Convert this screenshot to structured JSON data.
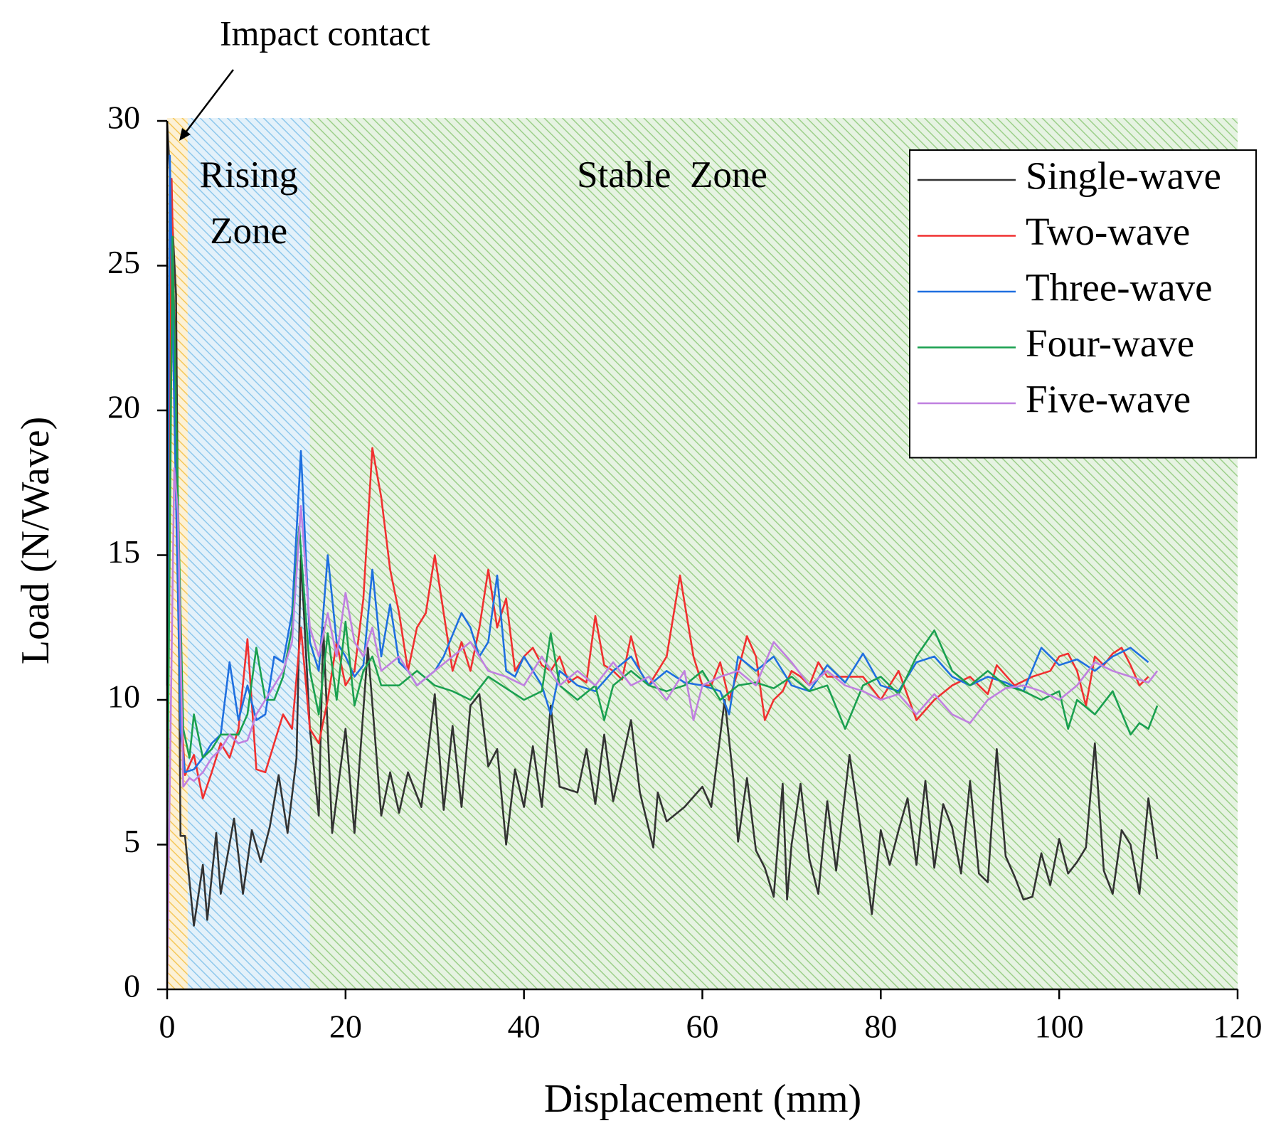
{
  "chart_data": {
    "type": "line",
    "x_label": "Displacement (mm)",
    "y_label": "Load (N/Wave)",
    "xlim": [
      0,
      120
    ],
    "xticks": [
      0,
      20,
      40,
      60,
      80,
      100,
      120
    ],
    "ylim": [
      0,
      30
    ],
    "yticks": [
      0,
      5,
      10,
      15,
      20,
      25,
      30
    ],
    "annotation": "Impact contact",
    "zones": [
      {
        "start": 0,
        "end": 2.3,
        "color": "#f5c85a"
      },
      {
        "start": 2.3,
        "end": 16,
        "color": "#8ec8ec",
        "label_lines": [
          "Rising",
          "Zone"
        ]
      },
      {
        "start": 16,
        "end": 120,
        "color": "#9ccf8a",
        "label_lines": [
          "Stable  Zone"
        ]
      }
    ],
    "legend": "upper right",
    "series": [
      {
        "name": "Single-wave",
        "color": "#333333",
        "x": [
          0,
          1,
          1.5,
          2,
          3,
          4,
          4.5,
          5.5,
          6,
          7.5,
          8.5,
          9.5,
          10.5,
          11.5,
          12.5,
          13.5,
          14.5,
          15,
          16,
          17,
          17.5,
          18.5,
          20,
          21,
          22.5,
          24,
          25,
          26,
          27,
          28.5,
          30,
          31,
          32,
          33,
          34,
          35,
          36,
          37,
          38,
          39,
          40,
          41,
          42,
          43,
          44,
          46,
          47,
          48,
          49,
          50,
          52,
          53,
          54.5,
          55,
          56,
          58,
          60,
          61,
          62.5,
          63.5,
          64,
          65,
          66,
          67,
          68,
          69,
          69.5,
          70,
          71,
          72,
          73,
          74,
          75,
          76.5,
          78,
          79,
          80,
          81,
          82,
          83,
          84,
          85,
          86,
          87,
          88,
          89,
          90,
          91,
          92,
          93,
          94,
          95,
          96,
          97,
          98,
          99,
          100,
          101,
          102,
          103,
          104,
          105,
          106,
          107,
          108,
          109,
          110,
          111
        ],
        "values": [
          30,
          24,
          5.3,
          5.3,
          2.2,
          4.3,
          2.4,
          5.4,
          3.3,
          5.9,
          3.3,
          5.5,
          4.4,
          5.6,
          7.4,
          5.4,
          8,
          15,
          9,
          6,
          12.5,
          5.4,
          9,
          5.4,
          11.8,
          6,
          7.5,
          6.1,
          7.5,
          6.3,
          10.2,
          6.2,
          9.1,
          6.3,
          9.8,
          10.2,
          7.7,
          8.3,
          5,
          7.6,
          6.3,
          8.4,
          6.3,
          9.8,
          7,
          6.8,
          8.3,
          6.4,
          8.8,
          6.5,
          9.3,
          6.8,
          4.9,
          6.8,
          5.8,
          6.3,
          7,
          6.3,
          10,
          7.2,
          5.1,
          7.3,
          4.8,
          4.2,
          3.2,
          7.1,
          3.1,
          5,
          7.1,
          4.5,
          3.3,
          6.5,
          4.1,
          8.1,
          5,
          2.6,
          5.5,
          4.3,
          5.5,
          6.6,
          4.3,
          7.2,
          4.2,
          6.4,
          5.6,
          4,
          7.2,
          4,
          3.7,
          8.3,
          4.6,
          3.9,
          3.1,
          3.2,
          4.7,
          3.6,
          5.2,
          4,
          4.4,
          4.9,
          8.5,
          4.1,
          3.3,
          5.5,
          5,
          3.3,
          6.6,
          4.5
        ]
      },
      {
        "name": "Two-wave",
        "color": "#f03030",
        "x": [
          0,
          0.5,
          1,
          1.5,
          2,
          3,
          4,
          5,
          6,
          7,
          8,
          9,
          10,
          11,
          12,
          13,
          14,
          15,
          16,
          17,
          18,
          19,
          20,
          21,
          22,
          23,
          24,
          25,
          26,
          27,
          28,
          29,
          30,
          31,
          32,
          33,
          34,
          35,
          36,
          37,
          38,
          39,
          40,
          41,
          42,
          43,
          44,
          45,
          46,
          47,
          48,
          49,
          50,
          51,
          52,
          53,
          54,
          56,
          57.5,
          59,
          60,
          61,
          62,
          63,
          64,
          65,
          66,
          67,
          68,
          69,
          70,
          71,
          72,
          73,
          74,
          76,
          78,
          80,
          82,
          84,
          86,
          88,
          90,
          92,
          93,
          95,
          97,
          99,
          100,
          101,
          102,
          103,
          104,
          105,
          106,
          107,
          108,
          109,
          110
        ],
        "values": [
          10.5,
          28,
          20,
          10,
          7.4,
          8.1,
          6.6,
          7.5,
          8.5,
          8,
          9,
          12.1,
          7.6,
          7.5,
          8.5,
          9.5,
          9,
          12.5,
          9,
          8.5,
          10,
          12,
          10.5,
          11,
          13.5,
          18.7,
          17,
          14.5,
          13,
          11,
          12.5,
          13,
          15,
          13,
          11,
          12,
          11,
          12.5,
          14.5,
          12.5,
          13.5,
          11,
          11.5,
          11.8,
          11.2,
          11,
          11.5,
          10.6,
          10.8,
          10.6,
          12.9,
          11.2,
          11,
          10.7,
          12.2,
          11,
          10.5,
          11.5,
          14.3,
          11.5,
          10.5,
          10.5,
          11.3,
          10,
          11,
          12.2,
          11.5,
          9.3,
          10,
          10.3,
          11,
          10.8,
          10.5,
          11.3,
          10.8,
          10.8,
          10.8,
          10,
          11,
          9.3,
          10,
          10.5,
          10.8,
          10.2,
          11.2,
          10.5,
          10.8,
          11,
          11.5,
          11.6,
          11,
          9.8,
          11.5,
          11.2,
          11.6,
          11.8,
          11.2,
          10.5,
          10.8
        ]
      },
      {
        "name": "Three-wave",
        "color": "#1f6fe0",
        "x": [
          0,
          0.3,
          0.8,
          1.5,
          2,
          3,
          4,
          5,
          6,
          7,
          8,
          9,
          10,
          11,
          12,
          13,
          14,
          15,
          16,
          17,
          18,
          19,
          20,
          21,
          22,
          23,
          24,
          25,
          26,
          27,
          28,
          30,
          31,
          33,
          34,
          35,
          36,
          37,
          38,
          39,
          40,
          42,
          43,
          44,
          46,
          48,
          50,
          52,
          54,
          56,
          58,
          60,
          62,
          63,
          64,
          66,
          68,
          70,
          72,
          74,
          76,
          78,
          80,
          82,
          84,
          86,
          88,
          90,
          92,
          94,
          96,
          98,
          100,
          102,
          104,
          106,
          108,
          110
        ],
        "values": [
          10.5,
          28.8,
          20,
          9,
          7.5,
          7.6,
          8,
          8.5,
          8.8,
          11.3,
          9.3,
          10.5,
          9.3,
          9.5,
          11.5,
          11.3,
          13,
          18.6,
          12,
          11,
          15,
          12,
          11.5,
          10.8,
          11.2,
          14.5,
          11.5,
          13.3,
          11.3,
          11,
          10.5,
          11,
          11.5,
          13,
          12.5,
          11.5,
          12,
          14.3,
          11,
          10.8,
          11.5,
          10.5,
          9.5,
          11,
          10.5,
          10.3,
          11,
          11.5,
          10.5,
          11,
          10.6,
          10.5,
          10.3,
          9.5,
          11.5,
          11,
          11.5,
          10.5,
          10.3,
          11.2,
          10.6,
          11.6,
          10.5,
          10.3,
          11.3,
          11.5,
          10.8,
          10.5,
          10.8,
          10.6,
          10.3,
          11.8,
          11.2,
          11.4,
          11,
          11.5,
          11.8,
          11.3
        ]
      },
      {
        "name": "Four-wave",
        "color": "#1aa050",
        "x": [
          0,
          0.6,
          1.2,
          1.8,
          2.5,
          3,
          4,
          5,
          6,
          7,
          8,
          9,
          10,
          11,
          12,
          13,
          14,
          14.8,
          16,
          17,
          18,
          19,
          20,
          21,
          22,
          23,
          24,
          26,
          28,
          30,
          32,
          34,
          36,
          38,
          40,
          42,
          43,
          44,
          46,
          48,
          49,
          50,
          52,
          54,
          56,
          58,
          60,
          62,
          64,
          66,
          68,
          70,
          72,
          74,
          76,
          78,
          80,
          82,
          84,
          86,
          88,
          90,
          92,
          94,
          96,
          98,
          100,
          101,
          102,
          104,
          106,
          108,
          109,
          110,
          111
        ],
        "values": [
          5,
          26,
          17,
          9,
          8,
          9.5,
          8,
          8.3,
          8.8,
          8.8,
          8.8,
          9.5,
          11.8,
          10,
          10,
          10.8,
          12.5,
          16,
          11,
          9.5,
          12.3,
          10,
          12.7,
          9.8,
          11,
          11.5,
          10.5,
          10.5,
          11,
          10.5,
          10.3,
          10,
          10.8,
          10.4,
          10,
          10.3,
          12.3,
          10.5,
          10,
          10.5,
          9.3,
          10.5,
          11,
          10.5,
          10.3,
          10.5,
          11,
          10,
          10.5,
          10.6,
          10.4,
          10.8,
          10.3,
          10.5,
          9,
          10.5,
          10.8,
          10.2,
          11.5,
          12.4,
          11,
          10.5,
          11,
          10.5,
          10.3,
          10,
          10.3,
          9,
          10,
          9.5,
          10.3,
          8.8,
          9.2,
          9,
          9.8
        ]
      },
      {
        "name": "Five-wave",
        "color": "#c080e0",
        "x": [
          0,
          0.2,
          0.8,
          1.2,
          1.8,
          2.5,
          3,
          4,
          5,
          6,
          7,
          8,
          9,
          10,
          11,
          12,
          13,
          14,
          15,
          16,
          17,
          18,
          19,
          20,
          21,
          22,
          23,
          24,
          26,
          28,
          30,
          32,
          34,
          36,
          38,
          40,
          42,
          44,
          46,
          48,
          50,
          52,
          54,
          56,
          58,
          59,
          60,
          62,
          64,
          66,
          68,
          70,
          72,
          74,
          76,
          78,
          80,
          82,
          84,
          86,
          88,
          90,
          92,
          94,
          96,
          98,
          100,
          102,
          104,
          106,
          108,
          110,
          111
        ],
        "values": [
          0,
          5,
          18,
          16.5,
          7,
          7.3,
          7.2,
          7.5,
          8,
          8.3,
          8.8,
          8.5,
          8.6,
          9.5,
          10,
          10.5,
          11,
          12,
          16.7,
          12.5,
          11.5,
          13,
          11.5,
          13.7,
          12,
          11.5,
          12.5,
          11,
          11.5,
          10.5,
          11,
          11.5,
          12,
          11,
          10.8,
          10.5,
          11.5,
          10.5,
          11,
          10.5,
          11.3,
          10.5,
          10.8,
          10,
          11,
          9.3,
          10.5,
          10.8,
          11,
          10.5,
          12,
          11.3,
          10.5,
          11,
          10.5,
          10.3,
          10,
          10.2,
          9.5,
          10.2,
          9.5,
          9.2,
          10,
          10.4,
          10.5,
          10.3,
          10,
          10.5,
          11.3,
          11,
          10.8,
          10.6,
          11
        ]
      }
    ]
  }
}
